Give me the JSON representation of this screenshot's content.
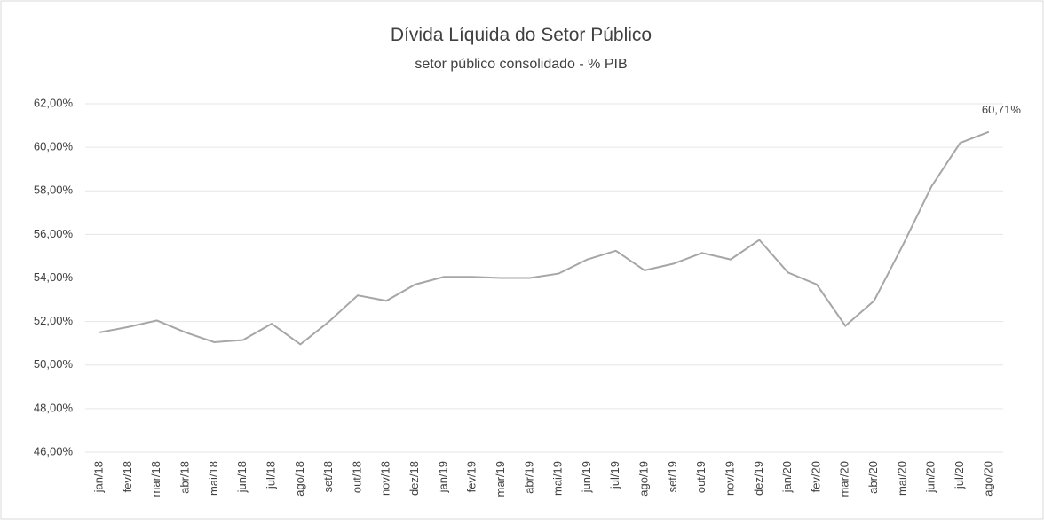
{
  "chart_data": {
    "type": "line",
    "title": "Dívida Líquida do Setor Público",
    "subtitle": "setor público consolidado - % PIB",
    "categories": [
      "jan/18",
      "fev/18",
      "mar/18",
      "abr/18",
      "mai/18",
      "jun/18",
      "jul/18",
      "ago/18",
      "set/18",
      "out/18",
      "nov/18",
      "dez/18",
      "jan/19",
      "fev/19",
      "mar/19",
      "abr/19",
      "mai/19",
      "jun/19",
      "jul/19",
      "ago/19",
      "set/19",
      "out/19",
      "nov/19",
      "dez/19",
      "jan/20",
      "fev/20",
      "mar/20",
      "abr/20",
      "mai/20",
      "jun/20",
      "jul/20",
      "ago/20"
    ],
    "values": [
      51.5,
      51.75,
      52.05,
      51.5,
      51.05,
      51.15,
      51.9,
      50.95,
      52.0,
      53.2,
      52.95,
      53.7,
      54.05,
      54.05,
      54.0,
      54.0,
      54.2,
      54.85,
      55.25,
      54.35,
      54.65,
      55.15,
      54.85,
      55.75,
      54.25,
      53.7,
      51.8,
      52.95,
      55.5,
      58.2,
      60.2,
      60.71
    ],
    "value_labels": [
      null,
      null,
      null,
      null,
      null,
      null,
      null,
      null,
      null,
      null,
      null,
      null,
      null,
      null,
      null,
      null,
      null,
      null,
      null,
      null,
      null,
      null,
      null,
      null,
      null,
      null,
      null,
      null,
      null,
      null,
      null,
      "60,71%"
    ],
    "color": "#a6a6a6",
    "ylim": [
      46,
      62
    ],
    "yticks": [
      {
        "value": 46,
        "label": "46,00%"
      },
      {
        "value": 48,
        "label": "48,00%"
      },
      {
        "value": 50,
        "label": "50,00%"
      },
      {
        "value": 52,
        "label": "52,00%"
      },
      {
        "value": 54,
        "label": "54,00%"
      },
      {
        "value": 56,
        "label": "56,00%"
      },
      {
        "value": 58,
        "label": "58,00%"
      },
      {
        "value": 60,
        "label": "60,00%"
      },
      {
        "value": 62,
        "label": "62,00%"
      }
    ],
    "grid": true
  }
}
